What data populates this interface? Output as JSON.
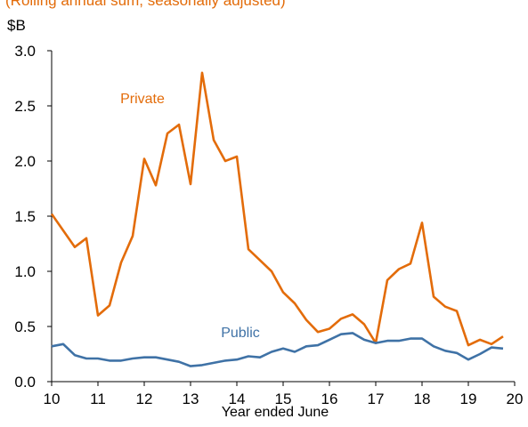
{
  "header": {
    "partial_text": "(Rolling annual sum, seasonally adjusted)"
  },
  "chart_data": {
    "type": "line",
    "title": "",
    "unit": "$B",
    "xlabel": "Year ended June",
    "ylabel": "",
    "xlim": [
      10,
      20
    ],
    "ylim": [
      0,
      3
    ],
    "x_ticks": [
      "10",
      "11",
      "12",
      "13",
      "14",
      "15",
      "16",
      "17",
      "18",
      "19",
      "20"
    ],
    "y_ticks": [
      "0.0",
      "0.5",
      "1.0",
      "1.5",
      "2.0",
      "2.5",
      "3.0"
    ],
    "grid": false,
    "x": [
      10.0,
      10.25,
      10.5,
      10.75,
      11.0,
      11.25,
      11.5,
      11.75,
      12.0,
      12.25,
      12.5,
      12.75,
      13.0,
      13.25,
      13.5,
      13.75,
      14.0,
      14.25,
      14.5,
      14.75,
      15.0,
      15.25,
      15.5,
      15.75,
      16.0,
      16.25,
      16.5,
      16.75,
      17.0,
      17.25,
      17.5,
      17.75,
      18.0,
      18.25,
      18.5,
      18.75,
      19.0,
      19.25,
      19.5,
      19.75
    ],
    "series": [
      {
        "name": "Private",
        "color": "#e36c0a",
        "values": [
          1.52,
          1.37,
          1.22,
          1.3,
          0.6,
          0.69,
          1.08,
          1.32,
          2.02,
          1.78,
          2.25,
          2.33,
          1.79,
          2.8,
          2.19,
          2.0,
          2.04,
          1.2,
          1.1,
          1.0,
          0.81,
          0.71,
          0.56,
          0.45,
          0.48,
          0.57,
          0.61,
          0.52,
          0.35,
          0.92,
          1.02,
          1.07,
          1.44,
          0.77,
          0.68,
          0.64,
          0.33,
          0.38,
          0.34,
          0.41
        ]
      },
      {
        "name": "Public",
        "color": "#3f72a6",
        "values": [
          0.32,
          0.34,
          0.24,
          0.21,
          0.21,
          0.19,
          0.19,
          0.21,
          0.22,
          0.22,
          0.2,
          0.18,
          0.14,
          0.15,
          0.17,
          0.19,
          0.2,
          0.23,
          0.22,
          0.27,
          0.3,
          0.27,
          0.32,
          0.33,
          0.38,
          0.43,
          0.44,
          0.38,
          0.35,
          0.37,
          0.37,
          0.39,
          0.39,
          0.32,
          0.28,
          0.26,
          0.2,
          0.25,
          0.31,
          0.3
        ]
      }
    ]
  }
}
